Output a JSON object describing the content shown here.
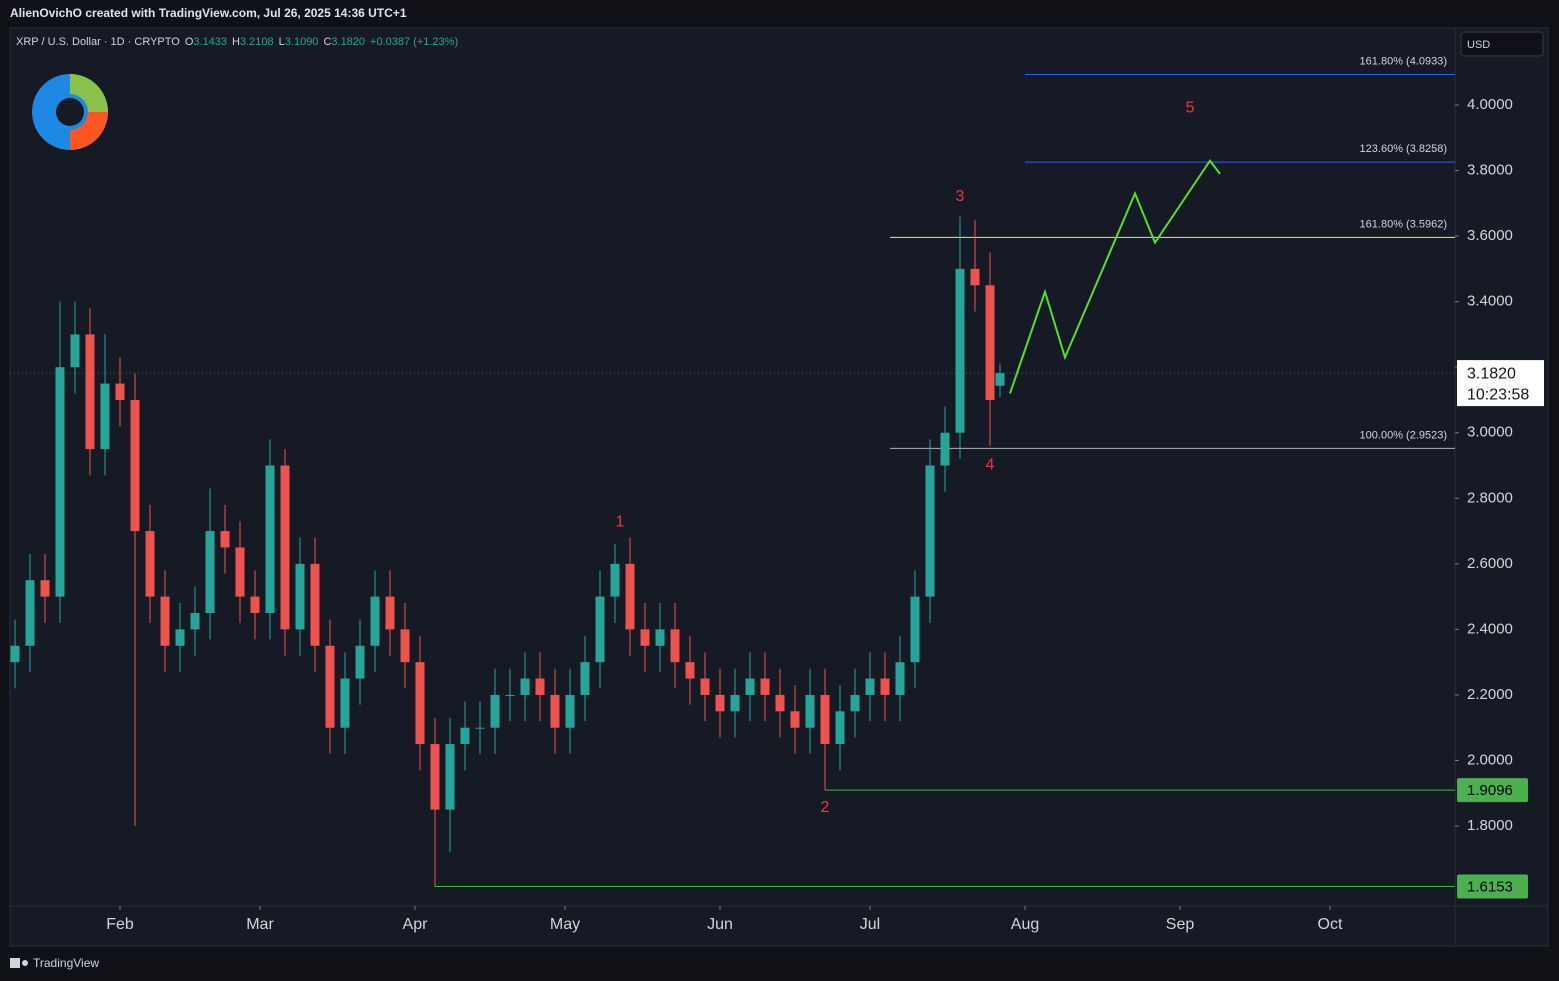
{
  "chart_data": {
    "type": "candlestick",
    "header": "AlienOvichO created with TradingView.com, Jul 26, 2025 14:36 UTC+1",
    "symbol": "XRP / U.S. Dollar · 1D · CRYPTO",
    "ohlc_legend": [
      {
        "key": "O",
        "text": "3.1433"
      },
      {
        "key": "H",
        "text": "3.2108"
      },
      {
        "key": "L",
        "text": "3.1090"
      },
      {
        "key": "C",
        "text": "3.1820"
      }
    ],
    "change": "+0.0387 (+1.23%)",
    "currency": "USD",
    "footer": "TradingView",
    "up_color": "#26a69a",
    "down_color": "#ef5350",
    "xlim": [
      9,
      298
    ],
    "ylim": [
      1.559,
      4.235
    ],
    "xticks": [
      {
        "value": 31,
        "label": "Feb"
      },
      {
        "value": 59,
        "label": "Mar"
      },
      {
        "value": 90,
        "label": "Apr"
      },
      {
        "value": 120,
        "label": "May"
      },
      {
        "value": 151,
        "label": "Jun"
      },
      {
        "value": 181,
        "label": "Jul"
      },
      {
        "value": 212,
        "label": "Aug"
      },
      {
        "value": 243,
        "label": "Sep"
      },
      {
        "value": 273,
        "label": "Oct"
      }
    ],
    "yticks": [
      {
        "value": 1.8,
        "label": "1.8000"
      },
      {
        "value": 2.0,
        "label": "2.0000"
      },
      {
        "value": 2.2,
        "label": "2.2000"
      },
      {
        "value": 2.4,
        "label": "2.4000"
      },
      {
        "value": 2.6,
        "label": "2.6000"
      },
      {
        "value": 2.8,
        "label": "2.8000"
      },
      {
        "value": 3.0,
        "label": "3.0000"
      },
      {
        "value": 3.2,
        "label": "3.2000"
      },
      {
        "value": 3.4,
        "label": "3.4000"
      },
      {
        "value": 3.6,
        "label": "3.6000"
      },
      {
        "value": 3.8,
        "label": "3.8000"
      },
      {
        "value": 4.0,
        "label": "4.0000"
      }
    ],
    "x": [
      10,
      13,
      16,
      19,
      22,
      25,
      28,
      31,
      34,
      37,
      40,
      43,
      46,
      49,
      52,
      55,
      58,
      61,
      64,
      67,
      70,
      73,
      76,
      79,
      82,
      85,
      88,
      91,
      94,
      97,
      100,
      103,
      106,
      109,
      112,
      115,
      118,
      121,
      124,
      127,
      130,
      133,
      136,
      139,
      142,
      145,
      148,
      151,
      154,
      157,
      160,
      163,
      166,
      169,
      172,
      175,
      178,
      181,
      184,
      187,
      190,
      193,
      196,
      199,
      202,
      205,
      207
    ],
    "open": [
      2.3,
      2.35,
      2.55,
      2.5,
      3.2,
      3.3,
      2.95,
      3.15,
      3.1,
      2.7,
      2.5,
      2.35,
      2.4,
      2.45,
      2.7,
      2.65,
      2.5,
      2.45,
      2.9,
      2.4,
      2.6,
      2.35,
      2.1,
      2.25,
      2.35,
      2.5,
      2.4,
      2.3,
      2.05,
      1.85,
      2.05,
      2.1,
      2.1,
      2.2,
      2.2,
      2.25,
      2.2,
      2.1,
      2.2,
      2.3,
      2.5,
      2.6,
      2.4,
      2.35,
      2.4,
      2.3,
      2.25,
      2.2,
      2.15,
      2.2,
      2.25,
      2.2,
      2.15,
      2.1,
      2.2,
      2.05,
      2.15,
      2.2,
      2.25,
      2.2,
      2.3,
      2.5,
      2.9,
      3.0,
      3.5,
      3.45,
      3.1433
    ],
    "high": [
      2.43,
      2.63,
      2.63,
      3.4,
      3.4,
      3.38,
      3.3,
      3.23,
      3.18,
      2.78,
      2.58,
      2.48,
      2.53,
      2.83,
      2.78,
      2.73,
      2.58,
      2.98,
      2.95,
      2.68,
      2.68,
      2.43,
      2.33,
      2.43,
      2.58,
      2.58,
      2.48,
      2.38,
      2.13,
      2.13,
      2.18,
      2.18,
      2.28,
      2.28,
      2.33,
      2.33,
      2.28,
      2.28,
      2.38,
      2.58,
      2.66,
      2.68,
      2.48,
      2.48,
      2.48,
      2.38,
      2.33,
      2.28,
      2.28,
      2.33,
      2.33,
      2.28,
      2.23,
      2.28,
      2.28,
      2.23,
      2.28,
      2.33,
      2.33,
      2.38,
      2.58,
      2.98,
      3.08,
      3.66,
      3.65,
      3.55,
      3.2108
    ],
    "low": [
      2.22,
      2.27,
      2.42,
      2.42,
      3.12,
      2.87,
      2.87,
      3.02,
      1.8,
      2.42,
      2.27,
      2.27,
      2.32,
      2.37,
      2.57,
      2.42,
      2.37,
      2.37,
      2.32,
      2.32,
      2.27,
      2.02,
      2.02,
      2.17,
      2.27,
      2.32,
      2.22,
      1.97,
      1.6153,
      1.72,
      1.97,
      2.02,
      2.02,
      2.12,
      2.12,
      2.12,
      2.02,
      2.02,
      2.12,
      2.22,
      2.42,
      2.32,
      2.27,
      2.27,
      2.22,
      2.17,
      2.12,
      2.07,
      2.07,
      2.12,
      2.12,
      2.07,
      2.02,
      2.02,
      1.9096,
      1.97,
      2.07,
      2.12,
      2.12,
      2.12,
      2.22,
      2.42,
      2.82,
      2.92,
      3.37,
      2.96,
      3.109
    ],
    "close": [
      2.35,
      2.55,
      2.5,
      3.2,
      3.3,
      2.95,
      3.15,
      3.1,
      2.7,
      2.5,
      2.35,
      2.4,
      2.45,
      2.7,
      2.65,
      2.5,
      2.45,
      2.9,
      2.4,
      2.6,
      2.35,
      2.1,
      2.25,
      2.35,
      2.5,
      2.4,
      2.3,
      2.05,
      1.85,
      2.05,
      2.1,
      2.1,
      2.2,
      2.2,
      2.25,
      2.2,
      2.1,
      2.2,
      2.3,
      2.5,
      2.6,
      2.4,
      2.35,
      2.4,
      2.3,
      2.25,
      2.2,
      2.15,
      2.2,
      2.25,
      2.2,
      2.15,
      2.1,
      2.2,
      2.05,
      2.15,
      2.2,
      2.25,
      2.2,
      2.3,
      2.5,
      2.9,
      3.0,
      3.5,
      3.45,
      3.1,
      3.182
    ],
    "last_price": {
      "value": 3.182,
      "label": "3.1820",
      "countdown": "10:23:58"
    },
    "levels": [
      {
        "label": "161.80% (4.0933)",
        "value": 4.0933,
        "from": 212,
        "color": "#2962ff"
      },
      {
        "label": "123.60% (3.8258)",
        "value": 3.8258,
        "from": 212,
        "color": "#2962ff"
      },
      {
        "label": "161.80% (3.5962)",
        "value": 3.5962,
        "from": 185,
        "color": "#ffeb3b"
      },
      {
        "label": "100.00% (2.9523)",
        "value": 2.9523,
        "from": 185,
        "color": "#b2b5be"
      }
    ],
    "horizontal_lines": [
      {
        "value": 1.9096,
        "label": "1.9096",
        "from": 172,
        "color": "#4caf50"
      },
      {
        "value": 1.6153,
        "label": "1.6153",
        "from": 94,
        "color": "#4caf50"
      }
    ],
    "waves": [
      {
        "label": "1",
        "x": 131,
        "price": 2.727
      },
      {
        "label": "2",
        "x": 172,
        "price": 1.855
      },
      {
        "label": "3",
        "x": 199,
        "price": 3.72
      },
      {
        "label": "4",
        "x": 205,
        "price": 2.9
      },
      {
        "label": "5",
        "x": 245,
        "price": 3.99
      }
    ],
    "projection": {
      "color": "#55e02b",
      "x": [
        209,
        216,
        220,
        234,
        238,
        249,
        251
      ],
      "y": [
        3.12,
        3.43,
        3.23,
        3.73,
        3.58,
        3.83,
        3.79
      ]
    }
  }
}
